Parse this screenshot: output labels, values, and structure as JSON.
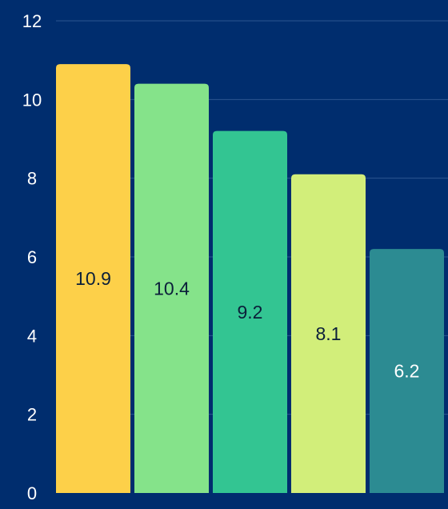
{
  "colors": {
    "background": "#002d6e",
    "gridline": "#2c5590",
    "tick_text": "#ffffff",
    "bar_palette": [
      "#fdd049",
      "#85e38a",
      "#33c592",
      "#d2ee7a",
      "#2c8b92"
    ],
    "label_dark": "#0b1f3a",
    "label_light": "#ffffff"
  },
  "chart_data": {
    "type": "bar",
    "categories": [
      "",
      "",
      "",
      "",
      ""
    ],
    "values": [
      10.9,
      10.4,
      9.2,
      8.1,
      6.2
    ],
    "data_labels": [
      "10.9",
      "10.4",
      "9.2",
      "8.1",
      "6.2"
    ],
    "title": "",
    "xlabel": "",
    "ylabel": "",
    "ylim": [
      0,
      12
    ],
    "yticks": [
      0,
      2,
      4,
      6,
      8,
      10,
      12
    ],
    "ytick_labels": [
      "0",
      "2",
      "4",
      "6",
      "8",
      "10",
      "12"
    ],
    "grid": true,
    "legend": "none"
  }
}
